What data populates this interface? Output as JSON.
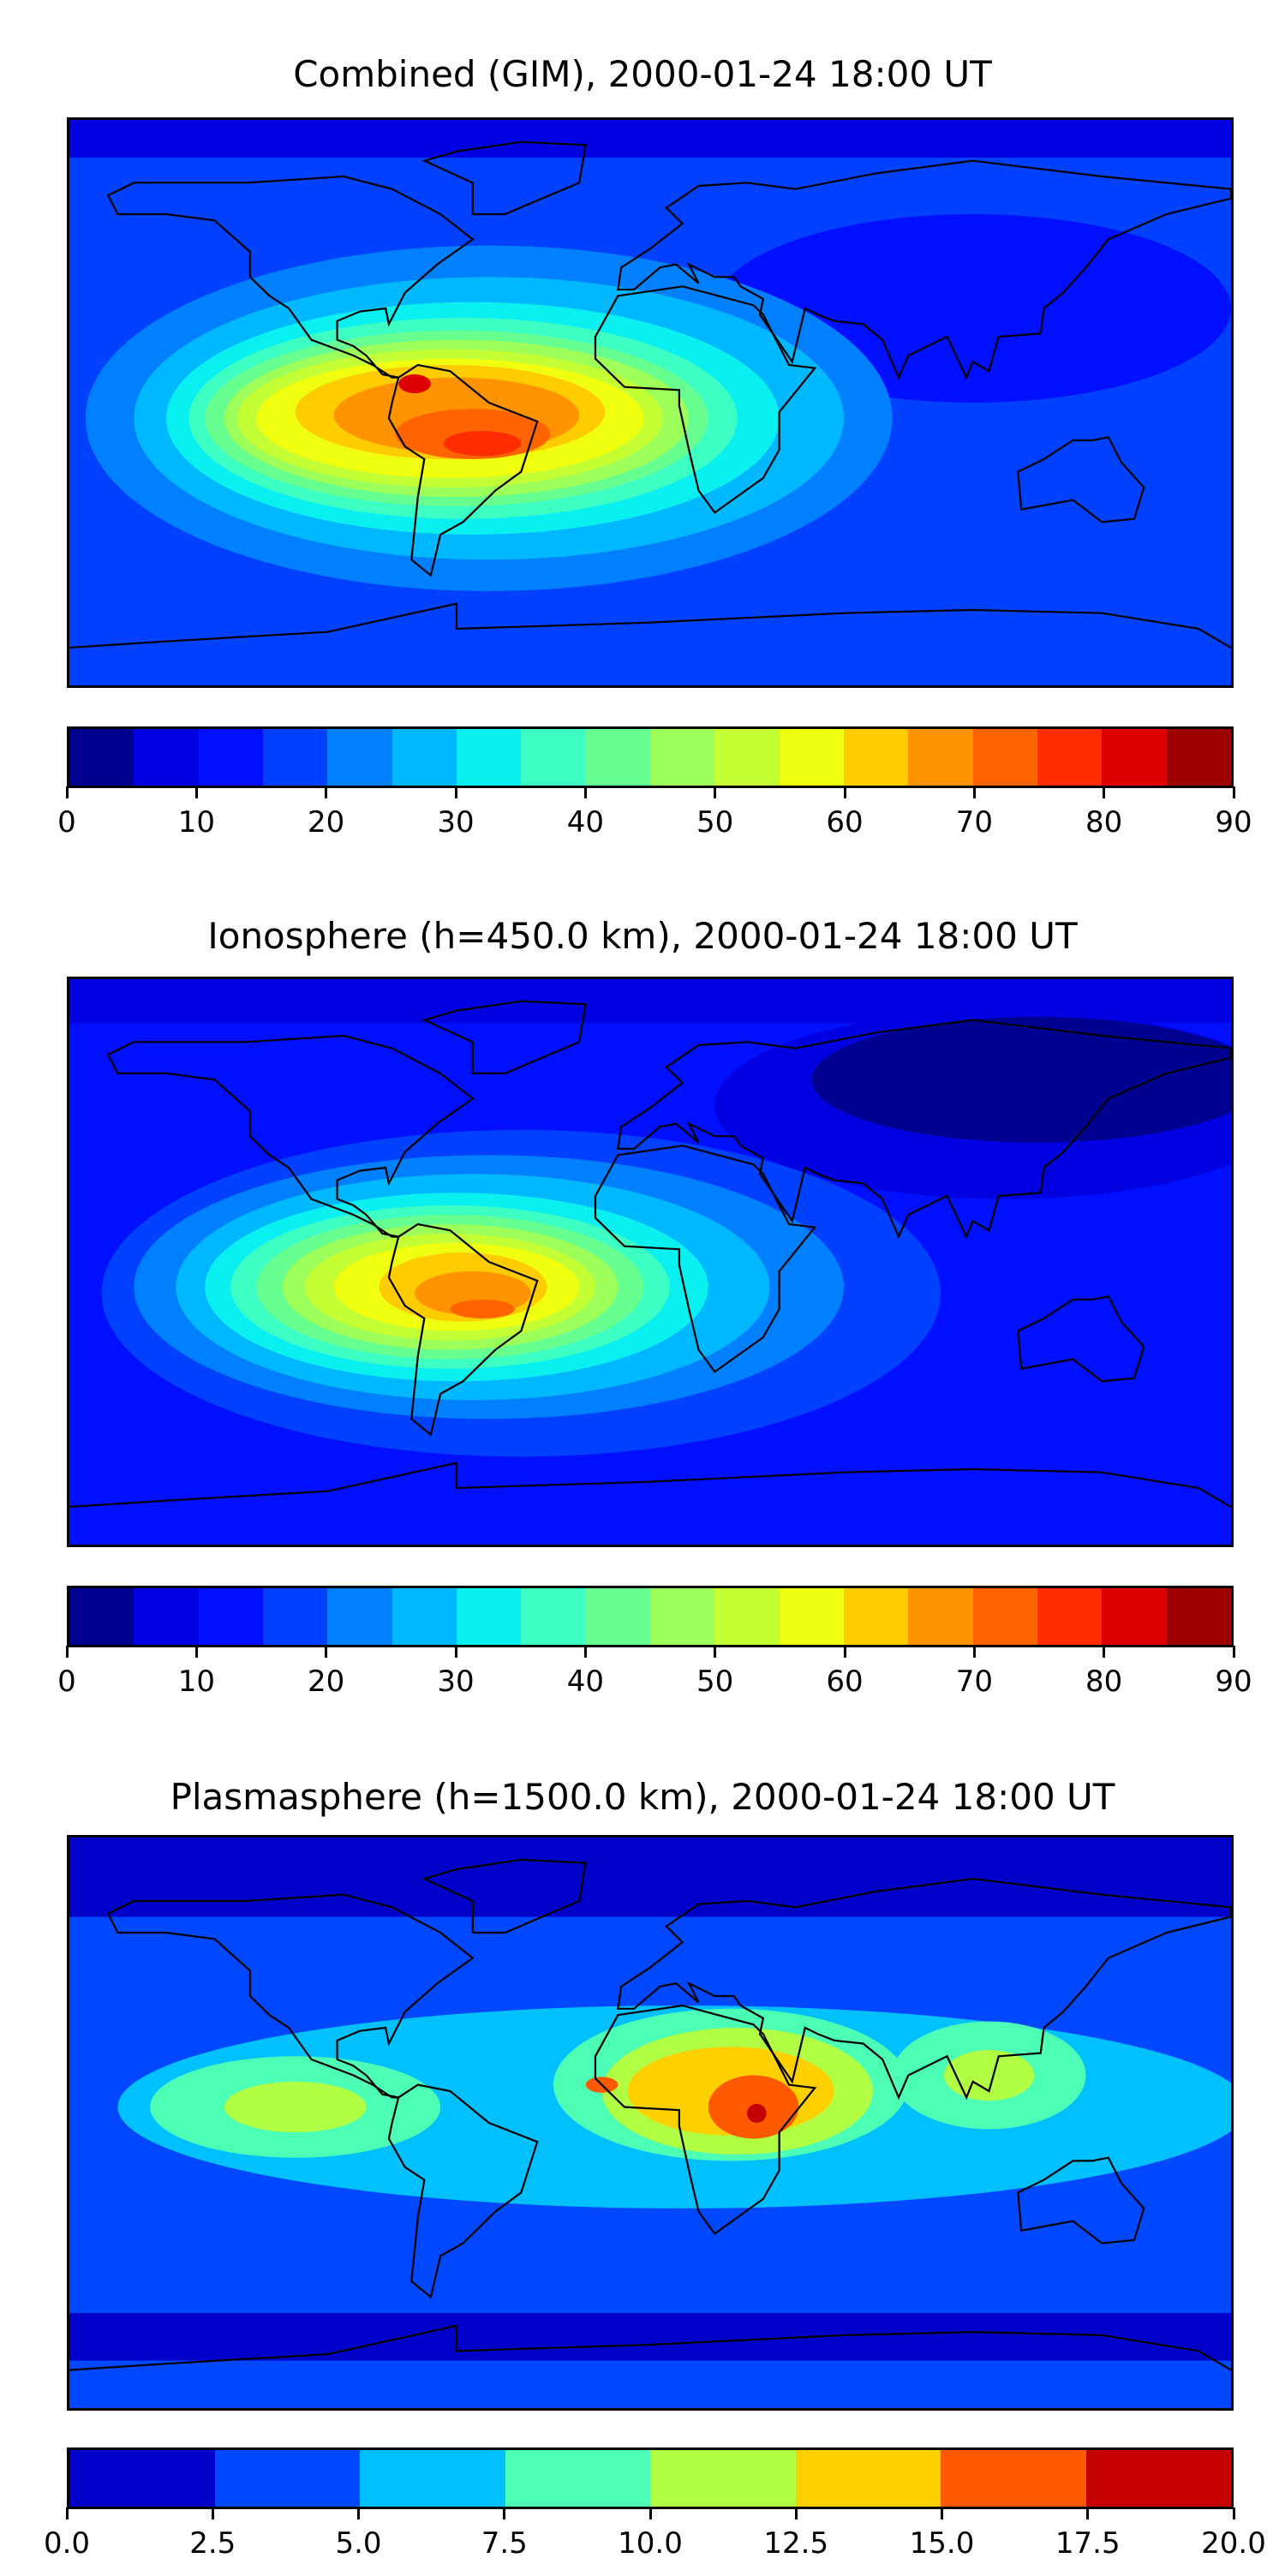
{
  "panels": [
    {
      "title": "Combined (GIM), 2000-01-24 18:00 UT",
      "colorbar": {
        "ticks": [
          "0",
          "10",
          "20",
          "30",
          "40",
          "50",
          "60",
          "70",
          "80",
          "90"
        ],
        "colors": [
          "#000090",
          "#0000e0",
          "#0010ff",
          "#0040ff",
          "#0080ff",
          "#00b8ff",
          "#0af0f0",
          "#3dffc4",
          "#66ff90",
          "#9dff5a",
          "#c4ff36",
          "#f0ff10",
          "#ffcc00",
          "#ff9400",
          "#ff6400",
          "#ff2c00",
          "#de0000",
          "#9c0000"
        ]
      }
    },
    {
      "title": "Ionosphere  (h=450.0 km), 2000-01-24 18:00 UT",
      "colorbar": {
        "ticks": [
          "0",
          "10",
          "20",
          "30",
          "40",
          "50",
          "60",
          "70",
          "80",
          "90"
        ],
        "colors": [
          "#000090",
          "#0000e0",
          "#0010ff",
          "#0040ff",
          "#0080ff",
          "#00b8ff",
          "#0af0f0",
          "#3dffc4",
          "#66ff90",
          "#9dff5a",
          "#c4ff36",
          "#f0ff10",
          "#ffcc00",
          "#ff9400",
          "#ff6400",
          "#ff2c00",
          "#de0000",
          "#9c0000"
        ]
      }
    },
    {
      "title": "Plasmasphere (h=1500.0 km), 2000-01-24 18:00 UT",
      "colorbar": {
        "ticks": [
          "0.0",
          "2.5",
          "5.0",
          "7.5",
          "10.0",
          "12.5",
          "15.0",
          "17.5",
          "20.0"
        ],
        "colors": [
          "#0000c8",
          "#0048ff",
          "#00c0ff",
          "#4dffb4",
          "#b0ff45",
          "#ffd000",
          "#ff5a00",
          "#c40000"
        ]
      }
    }
  ]
}
